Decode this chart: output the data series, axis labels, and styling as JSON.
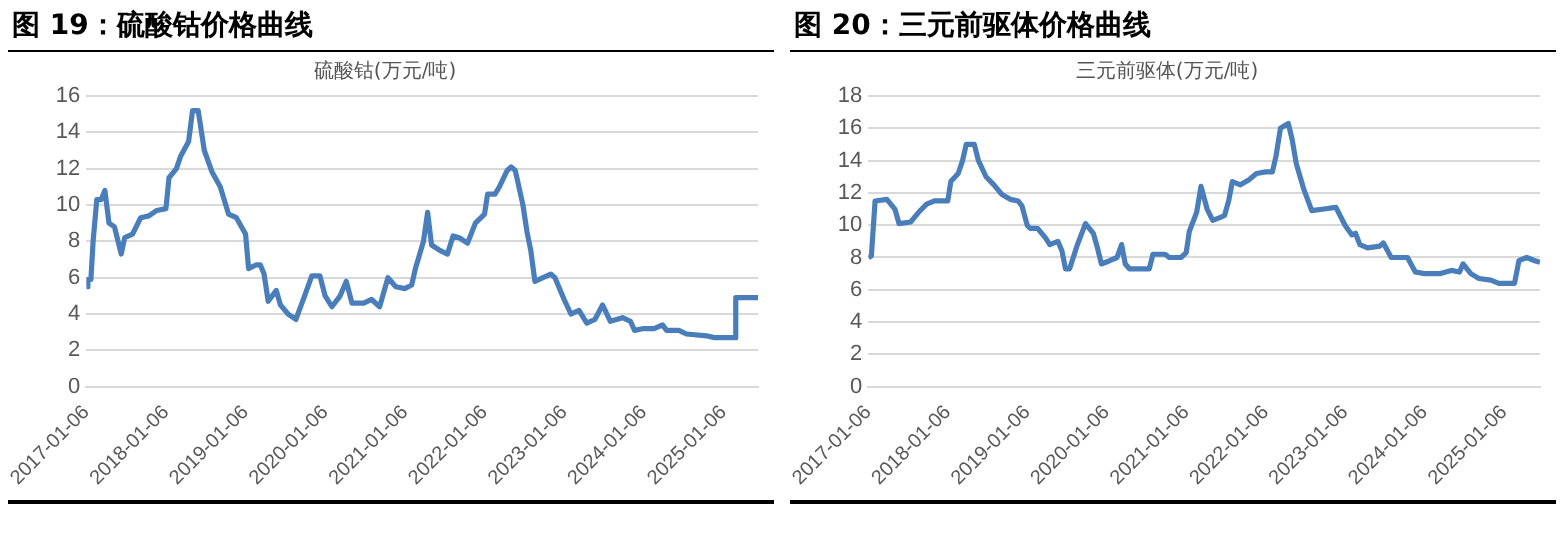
{
  "chart_data": [
    {
      "type": "line",
      "title": "图 19：硫酸钴价格曲线",
      "subtitle": "硫酸钴(万元/吨)",
      "grid": "y",
      "legend": false,
      "marker": "none",
      "line_style": "solid",
      "xlim": [
        "2017-01-06",
        "2025-06-13"
      ],
      "xticks": [
        "2017-01-06",
        "2018-01-06",
        "2019-01-06",
        "2020-01-06",
        "2021-01-06",
        "2022-01-06",
        "2023-01-06",
        "2024-01-06",
        "2025-01-06"
      ],
      "ylim": [
        0,
        16
      ],
      "yticks": [
        0,
        2,
        4,
        6,
        8,
        10,
        12,
        14,
        16
      ],
      "series": [
        {
          "color": "#4a7ebb",
          "x": [
            "2017-01-06",
            "2017-01-13",
            "2017-01-27",
            "2017-02-06",
            "2017-02-23",
            "2017-03-15",
            "2017-04-01",
            "2017-04-20",
            "2017-05-15",
            "2017-06-15",
            "2017-07-01",
            "2017-08-06",
            "2017-09-12",
            "2017-10-20",
            "2017-11-25",
            "2018-01-06",
            "2018-01-20",
            "2018-02-23",
            "2018-03-15",
            "2018-04-20",
            "2018-05-08",
            "2018-06-03",
            "2018-07-01",
            "2018-08-06",
            "2018-09-12",
            "2018-10-20",
            "2018-11-25",
            "2019-01-06",
            "2019-01-20",
            "2019-02-23",
            "2019-03-15",
            "2019-04-01",
            "2019-04-20",
            "2019-05-27",
            "2019-06-15",
            "2019-07-20",
            "2019-08-25",
            "2019-10-01",
            "2019-11-06",
            "2019-12-13",
            "2020-01-06",
            "2020-02-06",
            "2020-03-15",
            "2020-04-12",
            "2020-05-08",
            "2020-07-01",
            "2020-08-06",
            "2020-09-12",
            "2020-10-20",
            "2020-11-25",
            "2021-01-06",
            "2021-02-06",
            "2021-02-23",
            "2021-04-01",
            "2021-04-20",
            "2021-05-08",
            "2021-06-15",
            "2021-07-20",
            "2021-08-15",
            "2021-09-12",
            "2021-10-20",
            "2021-11-25",
            "2022-01-06",
            "2022-01-20",
            "2022-02-23",
            "2022-03-15",
            "2022-04-20",
            "2022-05-08",
            "2022-05-27",
            "2022-07-01",
            "2022-07-20",
            "2022-08-06",
            "2022-08-25",
            "2022-10-01",
            "2022-11-06",
            "2022-11-25",
            "2023-01-06",
            "2023-02-06",
            "2023-03-15",
            "2023-04-20",
            "2023-05-27",
            "2023-07-01",
            "2023-08-06",
            "2023-10-01",
            "2023-11-06",
            "2023-11-25",
            "2024-01-06",
            "2024-02-23",
            "2024-04-01",
            "2024-04-20",
            "2024-06-15",
            "2024-07-20",
            "2024-10-20",
            "2024-11-25",
            "2025-02-06",
            "2025-02-23",
            "2025-03-03",
            "2025-06-13"
          ],
          "values": [
            5.5,
            5.9,
            5.9,
            8,
            10.3,
            10.3,
            10.8,
            9,
            8.8,
            7.3,
            8.2,
            8.4,
            9.3,
            9.4,
            9.7,
            9.8,
            11.5,
            12,
            12.7,
            13.5,
            15.2,
            15.2,
            13,
            11.8,
            11,
            9.5,
            9.3,
            8.4,
            6.5,
            6.7,
            6.7,
            6.2,
            4.7,
            5.3,
            4.5,
            4,
            3.7,
            4.9,
            6.1,
            6.1,
            5,
            4.4,
            5,
            5.8,
            4.6,
            4.6,
            4.8,
            4.4,
            6,
            5.5,
            5.4,
            5.6,
            6.5,
            8,
            9.6,
            7.8,
            7.5,
            7.3,
            8.3,
            8.2,
            7.9,
            9,
            9.5,
            10.6,
            10.6,
            11,
            11.9,
            12.1,
            11.9,
            10,
            8.5,
            7.5,
            5.8,
            6,
            6.2,
            6,
            4.8,
            4,
            4.2,
            3.5,
            3.7,
            4.5,
            3.6,
            3.8,
            3.6,
            3.1,
            3.2,
            3.2,
            3.4,
            3.1,
            3.1,
            2.9,
            2.8,
            2.7,
            2.7,
            2.7,
            4.9,
            4.9
          ]
        }
      ]
    },
    {
      "type": "line",
      "title": "图 20：三元前驱体价格曲线",
      "subtitle": "三元前驱体(万元/吨)",
      "grid": "y",
      "legend": false,
      "marker": "none",
      "line_style": "solid",
      "xlim": [
        "2017-01-06",
        "2025-06-20"
      ],
      "xticks": [
        "2017-01-06",
        "2018-01-06",
        "2019-01-06",
        "2020-01-06",
        "2021-01-06",
        "2022-01-06",
        "2023-01-06",
        "2024-01-06",
        "2025-01-06"
      ],
      "ylim": [
        0,
        18
      ],
      "yticks": [
        0,
        2,
        4,
        6,
        8,
        10,
        12,
        14,
        16,
        18
      ],
      "series": [
        {
          "color": "#4a7ebb",
          "x": [
            "2017-01-06",
            "2017-01-20",
            "2017-02-06",
            "2017-04-01",
            "2017-05-08",
            "2017-05-27",
            "2017-07-20",
            "2017-08-25",
            "2017-10-01",
            "2017-11-06",
            "2018-01-06",
            "2018-01-20",
            "2018-02-23",
            "2018-03-15",
            "2018-04-01",
            "2018-05-08",
            "2018-05-27",
            "2018-07-01",
            "2018-08-06",
            "2018-09-12",
            "2018-10-20",
            "2018-11-25",
            "2018-12-13",
            "2019-01-06",
            "2019-01-20",
            "2019-02-23",
            "2019-04-01",
            "2019-04-20",
            "2019-05-27",
            "2019-06-15",
            "2019-07-01",
            "2019-07-20",
            "2019-08-25",
            "2019-10-01",
            "2019-11-06",
            "2019-11-25",
            "2019-12-13",
            "2020-01-20",
            "2020-02-23",
            "2020-03-15",
            "2020-04-01",
            "2020-04-20",
            "2020-07-20",
            "2020-08-06",
            "2020-10-01",
            "2020-10-20",
            "2020-12-13",
            "2021-01-06",
            "2021-01-20",
            "2021-02-23",
            "2021-03-15",
            "2021-04-12",
            "2021-05-08",
            "2021-06-15",
            "2021-07-01",
            "2021-07-20",
            "2021-08-06",
            "2021-09-12",
            "2021-10-20",
            "2021-11-25",
            "2022-01-06",
            "2022-02-06",
            "2022-02-23",
            "2022-03-15",
            "2022-04-20",
            "2022-05-08",
            "2022-05-27",
            "2022-07-01",
            "2022-08-06",
            "2022-10-01",
            "2022-11-25",
            "2023-01-06",
            "2023-02-06",
            "2023-02-23",
            "2023-03-15",
            "2023-04-20",
            "2023-06-15",
            "2023-07-01",
            "2023-08-06",
            "2023-10-20",
            "2023-11-25",
            "2024-01-06",
            "2024-03-15",
            "2024-05-08",
            "2024-06-15",
            "2024-07-01",
            "2024-08-06",
            "2024-09-12",
            "2024-11-06",
            "2024-12-13",
            "2025-02-23",
            "2025-03-15",
            "2025-04-20",
            "2025-05-27",
            "2025-06-20"
          ],
          "values": [
            8,
            8.1,
            11.5,
            11.6,
            11,
            10.1,
            10.2,
            10.8,
            11.3,
            11.5,
            11.5,
            12.7,
            13.2,
            14,
            15,
            15,
            14,
            13,
            12.5,
            11.9,
            11.6,
            11.5,
            11.2,
            10,
            9.8,
            9.8,
            9.2,
            8.8,
            9,
            8.4,
            7.3,
            7.3,
            8.8,
            10.1,
            9.5,
            8.6,
            7.6,
            7.8,
            8,
            8.8,
            7.6,
            7.3,
            7.3,
            8.2,
            8.2,
            8,
            8,
            8.3,
            9.6,
            10.8,
            12.4,
            11,
            10.3,
            10.5,
            10.6,
            11.5,
            12.7,
            12.5,
            12.8,
            13.2,
            13.3,
            13.3,
            14.3,
            16,
            16.3,
            15.3,
            13.8,
            12.2,
            10.9,
            11,
            11.1,
            10,
            9.4,
            9.5,
            8.8,
            8.6,
            8.7,
            8.9,
            8,
            8,
            7.1,
            7,
            7,
            7.2,
            7.1,
            7.6,
            7,
            6.7,
            6.6,
            6.4,
            6.4,
            7.8,
            8,
            7.8,
            7.7
          ]
        }
      ]
    }
  ]
}
